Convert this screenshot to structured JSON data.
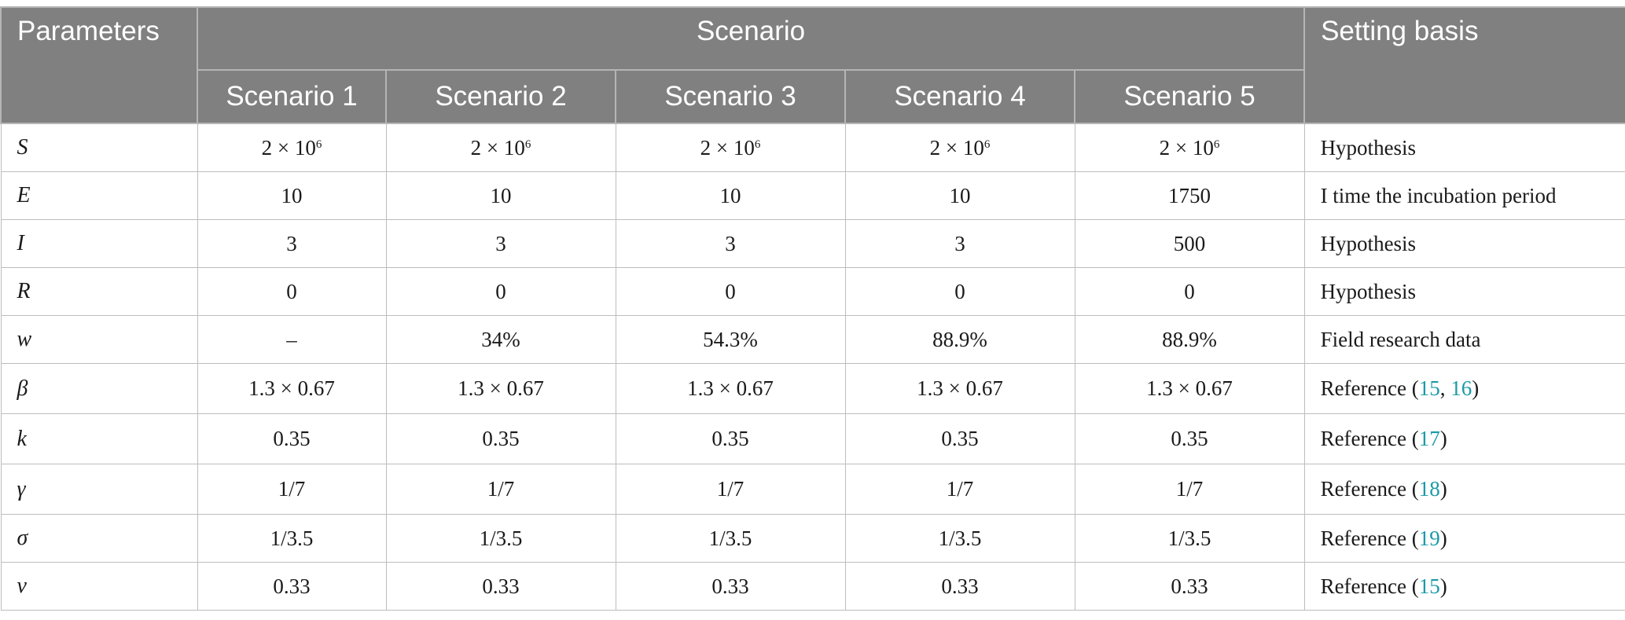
{
  "headers": {
    "parameters": "Parameters",
    "scenario": "Scenario",
    "setting_basis": "Setting basis",
    "scenarios": [
      "Scenario 1",
      "Scenario 2",
      "Scenario 3",
      "Scenario 4",
      "Scenario 5"
    ]
  },
  "rows": [
    {
      "param": "S",
      "values": [
        {
          "m": "2 × 10",
          "e": "6"
        },
        {
          "m": "2 × 10",
          "e": "6"
        },
        {
          "m": "2 × 10",
          "e": "6"
        },
        {
          "m": "2 × 10",
          "e": "6"
        },
        {
          "m": "2 × 10",
          "e": "6"
        }
      ],
      "basis": {
        "pre": "Hypothesis"
      }
    },
    {
      "param": "E",
      "values": [
        {
          "m": "10"
        },
        {
          "m": "10"
        },
        {
          "m": "10"
        },
        {
          "m": "10"
        },
        {
          "m": "1750"
        }
      ],
      "basis": {
        "pre": "I time the incubation period"
      }
    },
    {
      "param": "I",
      "values": [
        {
          "m": "3"
        },
        {
          "m": "3"
        },
        {
          "m": "3"
        },
        {
          "m": "3"
        },
        {
          "m": "500"
        }
      ],
      "basis": {
        "pre": "Hypothesis"
      }
    },
    {
      "param": "R",
      "values": [
        {
          "m": "0"
        },
        {
          "m": "0"
        },
        {
          "m": "0"
        },
        {
          "m": "0"
        },
        {
          "m": "0"
        }
      ],
      "basis": {
        "pre": "Hypothesis"
      }
    },
    {
      "param": "w",
      "values": [
        {
          "m": "–"
        },
        {
          "m": "34%"
        },
        {
          "m": "54.3%"
        },
        {
          "m": "88.9%"
        },
        {
          "m": "88.9%"
        }
      ],
      "basis": {
        "pre": "Field research data"
      }
    },
    {
      "param": "β",
      "values": [
        {
          "m": "1.3 × 0.67"
        },
        {
          "m": "1.3 × 0.67"
        },
        {
          "m": "1.3 × 0.67"
        },
        {
          "m": "1.3 × 0.67"
        },
        {
          "m": "1.3 × 0.67"
        }
      ],
      "basis": {
        "pre": "Reference (",
        "ref1": "15",
        "sep": ", ",
        "ref2": "16",
        "post": ")"
      }
    },
    {
      "param": "k",
      "values": [
        {
          "m": "0.35"
        },
        {
          "m": "0.35"
        },
        {
          "m": "0.35"
        },
        {
          "m": "0.35"
        },
        {
          "m": "0.35"
        }
      ],
      "basis": {
        "pre": "Reference (",
        "ref1": "17",
        "post": ")"
      }
    },
    {
      "param": "γ",
      "values": [
        {
          "m": "1/7"
        },
        {
          "m": "1/7"
        },
        {
          "m": "1/7"
        },
        {
          "m": "1/7"
        },
        {
          "m": "1/7"
        }
      ],
      "basis": {
        "pre": "Reference (",
        "ref1": "18",
        "post": ")"
      }
    },
    {
      "param": "σ",
      "values": [
        {
          "m": "1/3.5"
        },
        {
          "m": "1/3.5"
        },
        {
          "m": "1/3.5"
        },
        {
          "m": "1/3.5"
        },
        {
          "m": "1/3.5"
        }
      ],
      "basis": {
        "pre": "Reference (",
        "ref1": "19",
        "post": ")"
      }
    },
    {
      "param": "ν",
      "values": [
        {
          "m": "0.33"
        },
        {
          "m": "0.33"
        },
        {
          "m": "0.33"
        },
        {
          "m": "0.33"
        },
        {
          "m": "0.33"
        }
      ],
      "basis": {
        "pre": "Reference (",
        "ref1": "15",
        "post": ")"
      }
    }
  ]
}
